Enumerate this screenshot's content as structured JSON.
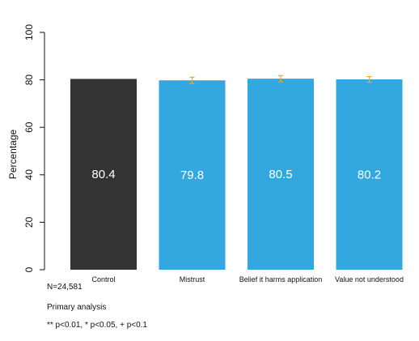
{
  "chart_data": {
    "type": "bar",
    "categories": [
      "Control",
      "Mistrust",
      "Belief it harms application",
      "Value not understood"
    ],
    "values": [
      80.4,
      79.8,
      80.5,
      80.2
    ],
    "data_labels": [
      "80.4",
      "79.8",
      "80.5",
      "80.2"
    ],
    "error_bars": [
      null,
      1.3,
      1.3,
      1.2
    ],
    "bar_colors": [
      "#333333",
      "#33a7e0",
      "#33a7e0",
      "#33a7e0"
    ],
    "error_bar_color": "#f5a623",
    "ylabel": "Percentage",
    "xlabel": "",
    "title": "",
    "ylim": [
      0,
      100
    ],
    "yticks": [
      0,
      20,
      40,
      60,
      80,
      100
    ],
    "grid": false,
    "legend": "none"
  },
  "notes": {
    "sample_size": "N=24,581",
    "analysis": "Primary analysis",
    "significance": "** p<0.01, * p<0.05, + p<0.1"
  }
}
